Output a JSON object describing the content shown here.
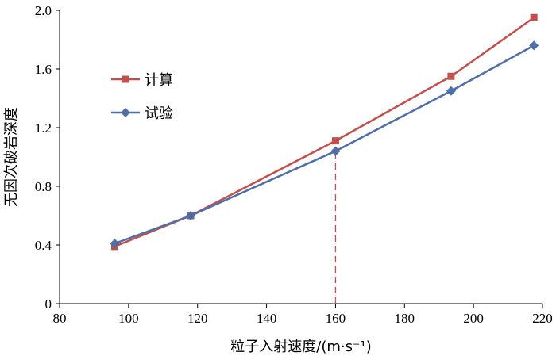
{
  "chart_data": {
    "type": "line",
    "title": "",
    "xlabel": "粒子入射速度/(m·s⁻¹)",
    "ylabel": "无因次破岩深度",
    "xlim": [
      80,
      220
    ],
    "ylim": [
      0,
      2.0
    ],
    "xticks": [
      "80",
      "100",
      "120",
      "140",
      "160",
      "180",
      "200",
      "220"
    ],
    "yticks": [
      "0",
      "0.4",
      "0.8",
      "1.2",
      "1.6",
      "2.0"
    ],
    "grid": false,
    "legend_position": "top-left",
    "series": [
      {
        "name": "计算",
        "color": "#C0504D",
        "marker": "square",
        "x": [
          96,
          118,
          160,
          193.5,
          217.5
        ],
        "y": [
          0.39,
          0.6,
          1.11,
          1.55,
          1.95
        ]
      },
      {
        "name": "试验",
        "color": "#4F6EA8",
        "marker": "diamond",
        "x": [
          96,
          118,
          160,
          193.5,
          217.5
        ],
        "y": [
          0.41,
          0.6,
          1.04,
          1.45,
          1.76
        ]
      }
    ],
    "annotations": [
      {
        "type": "vertical-dashed-line",
        "x": 160,
        "y_to": 1.04,
        "color": "#C0504D"
      }
    ]
  }
}
